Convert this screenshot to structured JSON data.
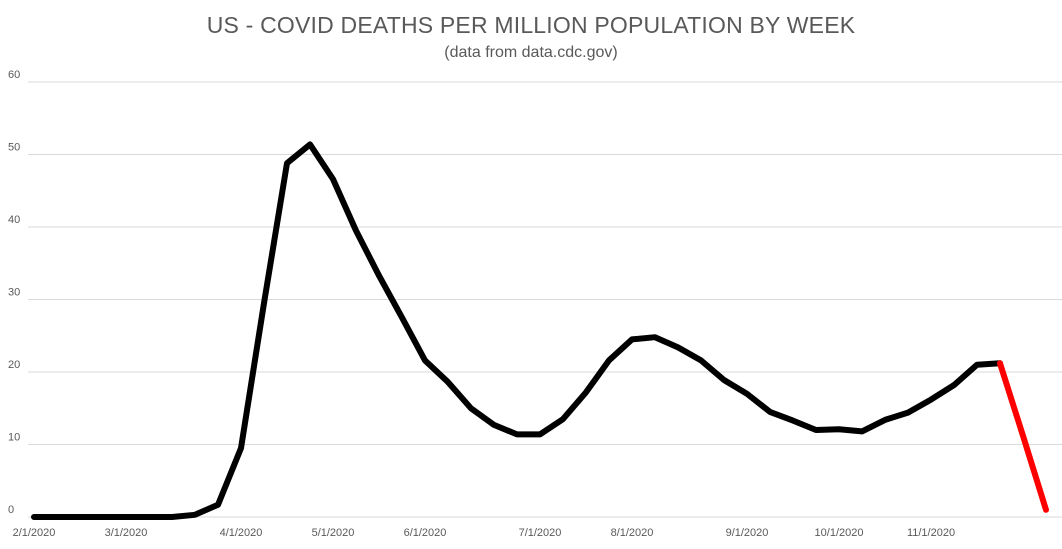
{
  "chart_data": {
    "type": "line",
    "title": "US - COVID DEATHS PER MILLION POPULATION BY WEEK",
    "subtitle": "(data from data.cdc.gov)",
    "ylim": [
      0,
      60
    ],
    "y_ticks": [
      0,
      10,
      20,
      30,
      40,
      50,
      60
    ],
    "x_tick_labels": [
      "2/1/2020",
      "3/1/2020",
      "4/1/2020",
      "5/1/2020",
      "6/1/2020",
      "7/1/2020",
      "8/1/2020",
      "9/1/2020",
      "10/1/2020",
      "11/1/2020"
    ],
    "x_tick_index": [
      0,
      4,
      9,
      13,
      17,
      22,
      26,
      31,
      35,
      39
    ],
    "grid": true,
    "legend": "none",
    "colors": {
      "main": "#000000",
      "recent": "#ff0000",
      "grid": "#d9d9d9",
      "text": "#595959"
    },
    "x": [
      "2/1/2020",
      "2/8/2020",
      "2/15/2020",
      "2/22/2020",
      "2/29/2020",
      "3/7/2020",
      "3/14/2020",
      "3/21/2020",
      "3/28/2020",
      "4/4/2020",
      "4/11/2020",
      "4/18/2020",
      "4/25/2020",
      "5/2/2020",
      "5/9/2020",
      "5/16/2020",
      "5/23/2020",
      "5/30/2020",
      "6/6/2020",
      "6/13/2020",
      "6/20/2020",
      "6/27/2020",
      "7/4/2020",
      "7/11/2020",
      "7/18/2020",
      "7/25/2020",
      "8/1/2020",
      "8/8/2020",
      "8/15/2020",
      "8/22/2020",
      "8/29/2020",
      "9/5/2020",
      "9/12/2020",
      "9/19/2020",
      "9/26/2020",
      "10/3/2020",
      "10/10/2020",
      "10/17/2020",
      "10/24/2020",
      "10/31/2020",
      "11/7/2020",
      "11/14/2020",
      "11/21/2020",
      "11/28/2020",
      "12/5/2020"
    ],
    "series": [
      {
        "color": "#000000",
        "values": [
          0,
          0,
          0,
          0,
          0,
          0,
          0,
          0.3,
          1.7,
          9.5,
          29.5,
          48.8,
          51.4,
          46.6,
          39.5,
          33.3,
          27.5,
          21.6,
          18.6,
          15.0,
          12.7,
          11.4,
          11.4,
          13.5,
          17.2,
          21.6,
          24.5,
          24.8,
          23.4,
          21.6,
          18.9,
          17.0,
          14.5,
          13.3,
          12.0,
          12.1,
          11.8,
          13.4,
          14.4,
          16.2,
          18.2,
          21.0,
          21.2,
          null,
          null
        ]
      },
      {
        "color": "#ff0000",
        "values": [
          null,
          null,
          null,
          null,
          null,
          null,
          null,
          null,
          null,
          null,
          null,
          null,
          null,
          null,
          null,
          null,
          null,
          null,
          null,
          null,
          null,
          null,
          null,
          null,
          null,
          null,
          null,
          null,
          null,
          null,
          null,
          null,
          null,
          null,
          null,
          null,
          null,
          null,
          null,
          null,
          null,
          null,
          21.2,
          11.2,
          1.0
        ]
      }
    ]
  }
}
